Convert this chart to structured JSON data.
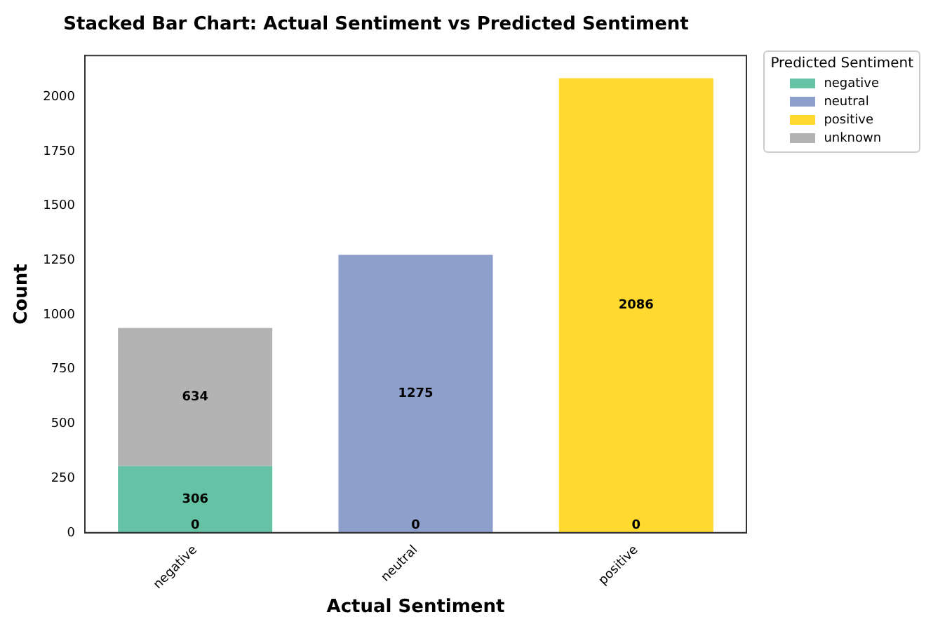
{
  "chart_data": {
    "type": "bar",
    "title": "Stacked Bar Chart: Actual Sentiment vs Predicted Sentiment",
    "xlabel": "Actual Sentiment",
    "ylabel": "Count",
    "legend_title": "Predicted Sentiment",
    "legend": "top right",
    "stacked": true,
    "grid": false,
    "ylim": [
      0,
      2190
    ],
    "yticks": [
      0,
      250,
      500,
      750,
      1000,
      1250,
      1500,
      1750,
      2000
    ],
    "categories": [
      "negative",
      "neutral",
      "positive"
    ],
    "annotations": [
      {
        "text": "0",
        "x": "negative",
        "y": 0
      },
      {
        "text": "0",
        "x": "neutral",
        "y": 0
      },
      {
        "text": "0",
        "x": "positive",
        "y": 0
      }
    ],
    "series": [
      {
        "name": "negative",
        "color": "#66c2a5",
        "values": [
          306,
          0,
          0
        ],
        "value_labels": [
          "306",
          null,
          null
        ]
      },
      {
        "name": "neutral",
        "color": "#8da0cb",
        "values": [
          0,
          1275,
          0
        ],
        "value_labels": [
          null,
          "1275",
          null
        ]
      },
      {
        "name": "positive",
        "color": "#ffd92f",
        "values": [
          0,
          0,
          2086
        ],
        "value_labels": [
          null,
          null,
          "2086"
        ]
      },
      {
        "name": "unknown",
        "color": "#b3b3b3",
        "values": [
          634,
          0,
          0
        ],
        "value_labels": [
          "634",
          null,
          null
        ]
      }
    ]
  }
}
